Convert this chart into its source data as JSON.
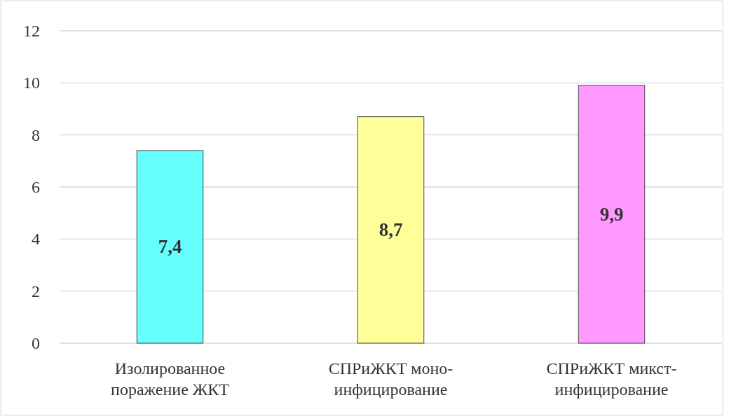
{
  "chart_data": {
    "type": "bar",
    "categories": [
      "Изолированное поражение ЖКТ",
      "СПРиЖКТ моно-инфицирование",
      "СПРиЖКТ микст-инфицирование"
    ],
    "values": [
      7.4,
      8.7,
      9.9
    ],
    "colors": [
      "#66ffff",
      "#ffff99",
      "#ff99ff"
    ],
    "value_labels": [
      "7,4",
      "8,7",
      "9,9"
    ],
    "ylim": [
      0,
      12
    ],
    "yticks": [
      0,
      2,
      4,
      6,
      8,
      10,
      12
    ],
    "grid": "y"
  }
}
